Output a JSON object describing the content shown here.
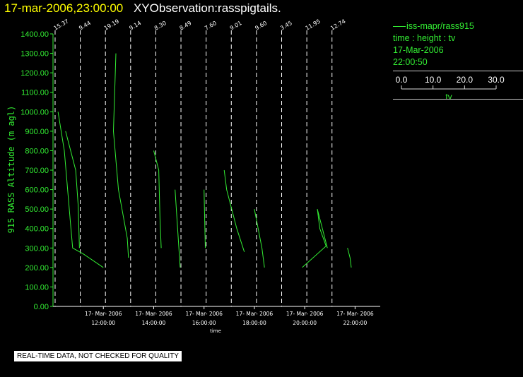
{
  "header": {
    "timestamp": "17-mar-2006,23:00:00",
    "observation": "XYObservation:rasspigtails."
  },
  "legend": {
    "series_label": "iss-mapr/rass915",
    "variables": "time : height : tv",
    "date": "17-Mar-2006",
    "time": "22:00:50",
    "scale_ticks": [
      "0.0",
      "10.0",
      "20.0",
      "30.0"
    ],
    "scale_label": "tv"
  },
  "footer_note": "REAL-TIME DATA, NOT CHECKED FOR QUALITY",
  "colors": {
    "background": "#000000",
    "data": "#33ee33",
    "grid": "#ffffff",
    "axis_text": "#ffffff",
    "header_time": "#ffff00"
  },
  "chart_data": {
    "type": "line",
    "ylabel": "915 RASS Altitude (m agl)",
    "xlabel": "time",
    "ylim": [
      0,
      1400
    ],
    "yticks": [
      0,
      100,
      200,
      300,
      400,
      500,
      600,
      700,
      800,
      900,
      1000,
      1100,
      1200,
      1300,
      1400
    ],
    "ytick_labels": [
      "0.00",
      "100.00",
      "200.00",
      "300.00",
      "400.00",
      "500.00",
      "600.00",
      "700.00",
      "800.00",
      "900.00",
      "1000.00",
      "1100.00",
      "1200.00",
      "1300.00",
      "1400.00"
    ],
    "xlim": [
      "2006-03-17T10:00",
      "2006-03-17T23:00"
    ],
    "xticks": [
      {
        "date": "17- Mar- 2006",
        "time": "12:00:00",
        "x": "2006-03-17T12:00"
      },
      {
        "date": "17- Mar- 2006",
        "time": "14:00:00",
        "x": "2006-03-17T14:00"
      },
      {
        "date": "17- Mar- 2006",
        "time": "16:00:00",
        "x": "2006-03-17T16:00"
      },
      {
        "date": "17- Mar- 2006",
        "time": "18:00:00",
        "x": "2006-03-17T18:00"
      },
      {
        "date": "17- Mar- 2006",
        "time": "20:00:00",
        "x": "2006-03-17T20:00"
      },
      {
        "date": "17- Mar- 2006",
        "time": "22:00:00",
        "x": "2006-03-17T22:00"
      }
    ],
    "profile_markers": [
      {
        "x": "2006-03-17T10:05",
        "label": "15.37"
      },
      {
        "x": "2006-03-17T11:05",
        "label": "9.44"
      },
      {
        "x": "2006-03-17T12:05",
        "label": "19.19"
      },
      {
        "x": "2006-03-17T13:05",
        "label": "9.14"
      },
      {
        "x": "2006-03-17T14:05",
        "label": "8.30"
      },
      {
        "x": "2006-03-17T15:05",
        "label": "8.49"
      },
      {
        "x": "2006-03-17T16:05",
        "label": "7.60"
      },
      {
        "x": "2006-03-17T17:05",
        "label": "9.01"
      },
      {
        "x": "2006-03-17T18:05",
        "label": "9.60"
      },
      {
        "x": "2006-03-17T19:05",
        "label": "3.45"
      },
      {
        "x": "2006-03-17T20:05",
        "label": "11.95"
      },
      {
        "x": "2006-03-17T21:05",
        "label": "12.74"
      }
    ],
    "profiles": [
      {
        "points": [
          [
            10.2,
            1000
          ],
          [
            10.45,
            800
          ],
          [
            10.7,
            420
          ],
          [
            10.78,
            300
          ],
          [
            11.2,
            270
          ],
          [
            12.0,
            200
          ]
        ]
      },
      {
        "points": [
          [
            10.5,
            900
          ],
          [
            10.9,
            700
          ],
          [
            11.0,
            520
          ],
          [
            11.05,
            300
          ]
        ]
      },
      {
        "points": [
          [
            12.5,
            1300
          ],
          [
            12.4,
            900
          ],
          [
            12.6,
            600
          ],
          [
            12.95,
            350
          ],
          [
            13.0,
            250
          ]
        ]
      },
      {
        "points": [
          [
            14.0,
            800
          ],
          [
            14.2,
            700
          ],
          [
            14.25,
            450
          ],
          [
            14.3,
            300
          ]
        ]
      },
      {
        "points": [
          [
            14.85,
            600
          ],
          [
            15.0,
            300
          ],
          [
            15.05,
            200
          ]
        ]
      },
      {
        "points": [
          [
            16.0,
            600
          ],
          [
            16.05,
            300
          ]
        ]
      },
      {
        "points": [
          [
            16.8,
            700
          ],
          [
            16.9,
            600
          ],
          [
            17.3,
            400
          ],
          [
            17.6,
            280
          ]
        ]
      },
      {
        "points": [
          [
            18.0,
            500
          ],
          [
            18.3,
            300
          ],
          [
            18.4,
            200
          ]
        ]
      },
      {
        "points": [
          [
            19.9,
            200
          ],
          [
            20.85,
            310
          ],
          [
            20.6,
            400
          ],
          [
            20.5,
            500
          ],
          [
            20.9,
            300
          ]
        ]
      },
      {
        "points": [
          [
            21.7,
            300
          ],
          [
            21.8,
            250
          ],
          [
            21.85,
            200
          ]
        ]
      }
    ]
  }
}
